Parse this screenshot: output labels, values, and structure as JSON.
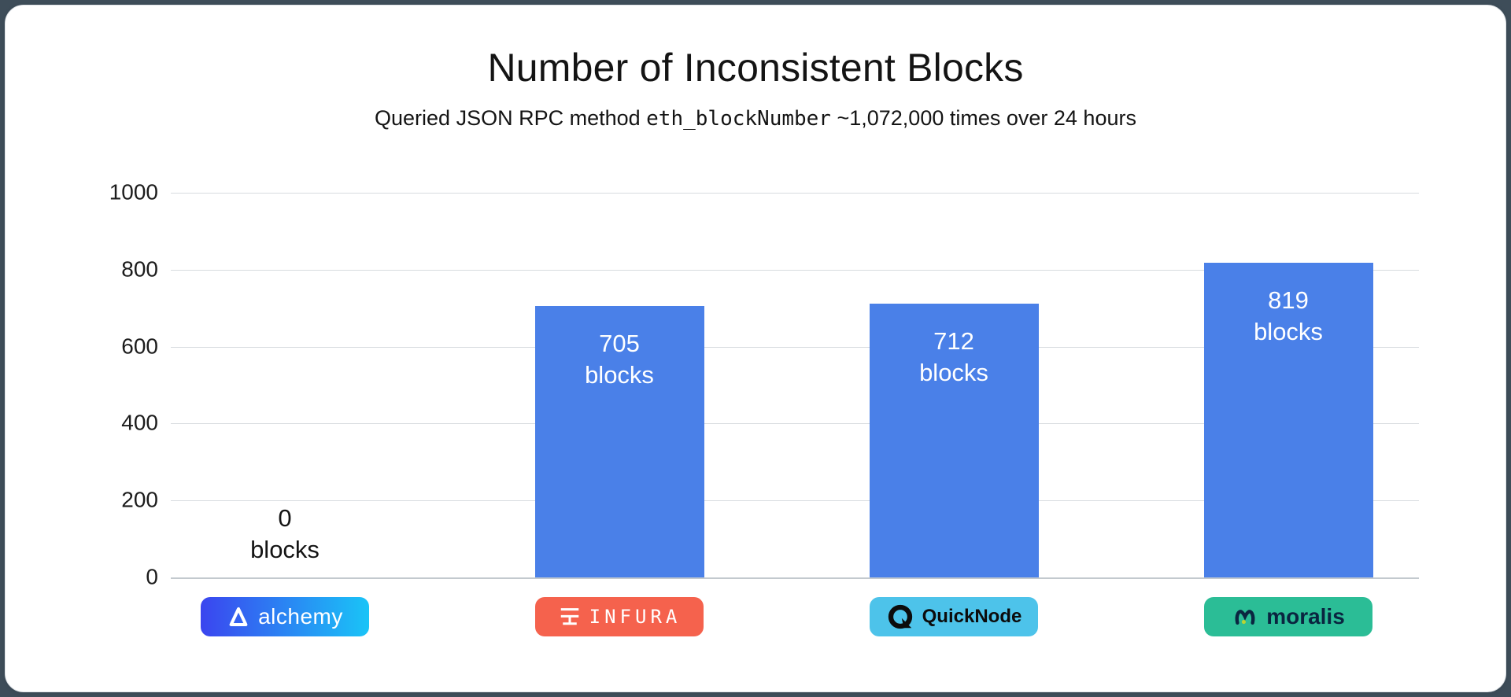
{
  "page": {
    "title": "Number of Inconsistent Blocks",
    "subtitle_prefix": "Queried JSON RPC method ",
    "subtitle_code": "eth_blockNumber",
    "subtitle_suffix": " ~1,072,000 times over 24 hours"
  },
  "chart_data": {
    "type": "bar",
    "title": "Number of Inconsistent Blocks",
    "subtitle": "Queried JSON RPC method eth_blockNumber ~1,072,000 times over 24 hours",
    "categories": [
      "Alchemy",
      "INFURA",
      "QuickNode",
      "Moralis"
    ],
    "values": [
      0,
      705,
      712,
      819
    ],
    "unit": "blocks",
    "ylim": [
      0,
      1000
    ],
    "yticks": [
      1000,
      800,
      600,
      400,
      200,
      0
    ],
    "ytick_labels": [
      "1000",
      "800",
      "600",
      "400",
      "200",
      "0"
    ],
    "grid": true,
    "legend": "none",
    "bar_color": "#4a80e8",
    "bars": [
      {
        "value_label": "0",
        "unit_label": "blocks",
        "brand": "alchemy"
      },
      {
        "value_label": "705",
        "unit_label": "blocks",
        "brand": "infura"
      },
      {
        "value_label": "712",
        "unit_label": "blocks",
        "brand": "quicknode"
      },
      {
        "value_label": "819",
        "unit_label": "blocks",
        "brand": "moralis"
      }
    ]
  },
  "badges": {
    "alchemy": {
      "label": "alchemy",
      "bg_from": "#3b45ef",
      "bg_to": "#1ac4f7",
      "text_color": "#ffffff"
    },
    "infura": {
      "label": "INFURA",
      "bg": "#f5624d",
      "text_color": "#ffffff"
    },
    "quicknode": {
      "label": "QuickNode",
      "bg": "#4dc3ea",
      "text_color": "#0c0c0c"
    },
    "moralis": {
      "label": "moralis",
      "bg": "#2bbd96",
      "text_color": "#0a2540",
      "dot_color": "#b9d433",
      "glyph_color": "#0a2540"
    }
  }
}
